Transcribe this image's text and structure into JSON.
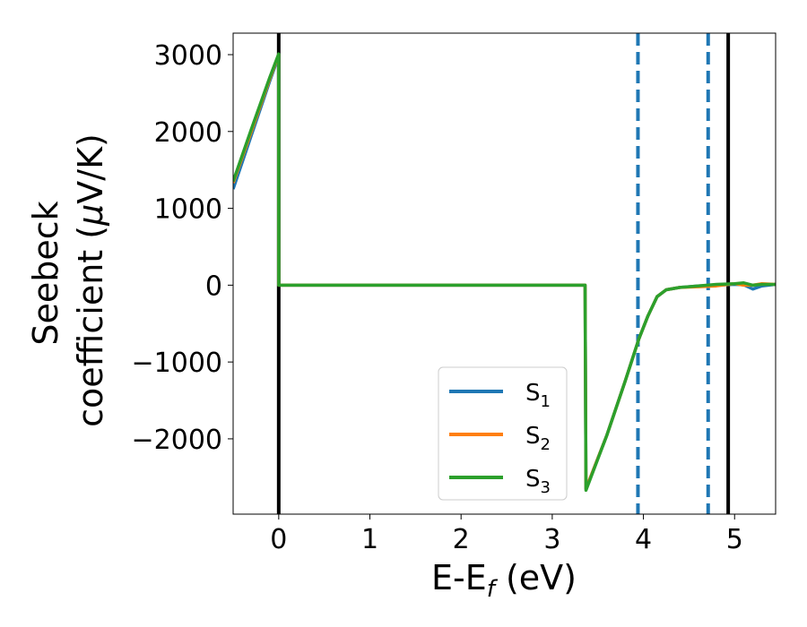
{
  "chart_data": {
    "type": "line",
    "xlabel": "E-E",
    "xlabel_sub": "f",
    "xlabel_unit": " (eV)",
    "ylabel_line1": "Seebeck",
    "ylabel_line2": "coefficient  (",
    "ylabel_mu": "μ",
    "ylabel_unit": "V/K)",
    "xlim": [
      -0.5,
      5.45
    ],
    "ylim": [
      -2980,
      3280
    ],
    "xticks": [
      0,
      1,
      2,
      3,
      4,
      5
    ],
    "xtick_labels": [
      "0",
      "1",
      "2",
      "3",
      "4",
      "5"
    ],
    "yticks": [
      3000,
      2000,
      1000,
      0,
      -1000,
      -2000
    ],
    "ytick_labels": [
      "3000",
      "2000",
      "1000",
      "0",
      "−1000",
      "−2000"
    ],
    "vlines_solid": [
      0,
      4.93
    ],
    "vlines_dashed": [
      3.94,
      4.71
    ],
    "vline_solid_color": "#000000",
    "vline_dashed_color": "#1f77b4",
    "legend_position": "lower-center-right",
    "series": [
      {
        "name": "S",
        "sub": "1",
        "color": "#1f77b4",
        "x": [
          -0.5,
          -0.3,
          -0.1,
          0.0,
          0.001,
          1.0,
          2.0,
          3.0,
          3.36,
          3.37,
          3.6,
          3.8,
          3.95,
          4.05,
          4.15,
          4.25,
          4.4,
          4.6,
          4.8,
          5.0,
          5.1,
          5.2,
          5.3,
          5.45
        ],
        "values": [
          1250,
          1950,
          2650,
          2980,
          0,
          0,
          0,
          0,
          0,
          -2650,
          -1950,
          -1250,
          -700,
          -400,
          -150,
          -60,
          -30,
          -10,
          0,
          10,
          5,
          -50,
          -10,
          10
        ]
      },
      {
        "name": "S",
        "sub": "2",
        "color": "#ff7f0e",
        "x": [
          -0.5,
          -0.3,
          -0.1,
          0.0,
          0.001,
          1.0,
          2.0,
          3.0,
          3.36,
          3.37,
          3.6,
          3.8,
          3.95,
          4.05,
          4.15,
          4.25,
          4.4,
          4.6,
          4.8,
          5.0,
          5.1,
          5.2,
          5.3,
          5.45
        ],
        "values": [
          1330,
          2000,
          2680,
          3000,
          0,
          0,
          0,
          0,
          0,
          -2650,
          -1950,
          -1250,
          -700,
          -400,
          -150,
          -60,
          -30,
          -20,
          -10,
          20,
          0,
          0,
          20,
          10
        ]
      },
      {
        "name": "S",
        "sub": "3",
        "color": "#2ca02c",
        "x": [
          -0.5,
          -0.3,
          -0.1,
          0.0,
          0.001,
          1.0,
          2.0,
          3.0,
          3.36,
          3.37,
          3.6,
          3.8,
          3.95,
          4.05,
          4.15,
          4.25,
          4.4,
          4.6,
          4.8,
          5.0,
          5.1,
          5.2,
          5.3,
          5.45
        ],
        "values": [
          1350,
          2030,
          2700,
          3010,
          0,
          0,
          0,
          0,
          0,
          -2670,
          -1950,
          -1250,
          -700,
          -400,
          -150,
          -60,
          -30,
          -10,
          10,
          20,
          30,
          0,
          10,
          10
        ]
      }
    ]
  }
}
